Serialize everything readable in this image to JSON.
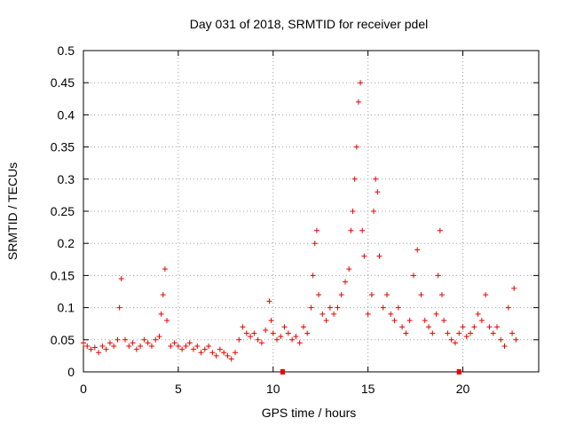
{
  "chart_data": {
    "type": "scatter",
    "title": "Day 031 of 2018, SRMTID for receiver pdel",
    "xlabel": "GPS time / hours",
    "ylabel": "SRMTID / TECUs",
    "xlim": [
      0,
      24
    ],
    "ylim": [
      0,
      0.5
    ],
    "x_ticks": [
      0,
      5,
      10,
      15,
      20
    ],
    "y_ticks": [
      0,
      0.05,
      0.1,
      0.15,
      0.2,
      0.25,
      0.3,
      0.35,
      0.4,
      0.45,
      0.5
    ],
    "x_tick_labels": [
      "0",
      "5",
      "10",
      "15",
      "20"
    ],
    "y_tick_labels": [
      "0",
      "0.05",
      "0.1",
      "0.15",
      "0.2",
      "0.25",
      "0.3",
      "0.35",
      "0.4",
      "0.45",
      "0.5"
    ],
    "grid": true,
    "marker": "plus",
    "color": "#ee0000",
    "gap_markers_x": [
      10.5,
      19.8
    ],
    "series": [
      {
        "name": "SRMTID",
        "x": [
          0.0,
          0.2,
          0.4,
          0.6,
          0.8,
          1.0,
          1.2,
          1.4,
          1.6,
          1.8,
          1.9,
          2.0,
          2.2,
          2.4,
          2.6,
          2.8,
          3.0,
          3.2,
          3.4,
          3.6,
          3.8,
          4.0,
          4.1,
          4.2,
          4.3,
          4.4,
          4.6,
          4.8,
          5.0,
          5.2,
          5.4,
          5.6,
          5.8,
          6.0,
          6.2,
          6.4,
          6.6,
          6.8,
          7.0,
          7.2,
          7.4,
          7.6,
          7.8,
          8.0,
          8.2,
          8.4,
          8.6,
          8.8,
          9.0,
          9.2,
          9.4,
          9.6,
          9.8,
          9.9,
          10.0,
          10.2,
          10.4,
          10.6,
          10.8,
          11.0,
          11.2,
          11.4,
          11.6,
          11.8,
          12.0,
          12.1,
          12.2,
          12.3,
          12.4,
          12.6,
          12.8,
          13.0,
          13.2,
          13.4,
          13.6,
          13.8,
          14.0,
          14.1,
          14.2,
          14.3,
          14.4,
          14.5,
          14.6,
          14.7,
          14.8,
          15.0,
          15.2,
          15.3,
          15.4,
          15.5,
          15.6,
          15.8,
          16.0,
          16.2,
          16.4,
          16.6,
          16.8,
          17.0,
          17.2,
          17.4,
          17.6,
          17.8,
          18.0,
          18.2,
          18.4,
          18.6,
          18.7,
          18.8,
          18.9,
          19.0,
          19.2,
          19.4,
          19.6,
          19.8,
          20.0,
          20.2,
          20.4,
          20.6,
          20.8,
          21.0,
          21.2,
          21.4,
          21.6,
          21.8,
          22.0,
          22.2,
          22.4,
          22.6,
          22.7,
          22.8
        ],
        "y": [
          0.045,
          0.04,
          0.035,
          0.038,
          0.03,
          0.04,
          0.035,
          0.045,
          0.04,
          0.05,
          0.1,
          0.145,
          0.05,
          0.04,
          0.045,
          0.035,
          0.04,
          0.05,
          0.045,
          0.04,
          0.05,
          0.055,
          0.09,
          0.12,
          0.16,
          0.08,
          0.04,
          0.045,
          0.04,
          0.035,
          0.04,
          0.045,
          0.035,
          0.04,
          0.03,
          0.035,
          0.04,
          0.03,
          0.025,
          0.035,
          0.03,
          0.025,
          0.02,
          0.03,
          0.05,
          0.07,
          0.06,
          0.055,
          0.06,
          0.05,
          0.045,
          0.065,
          0.11,
          0.08,
          0.06,
          0.05,
          0.055,
          0.07,
          0.06,
          0.05,
          0.055,
          0.045,
          0.07,
          0.06,
          0.1,
          0.15,
          0.2,
          0.22,
          0.12,
          0.09,
          0.08,
          0.1,
          0.09,
          0.1,
          0.12,
          0.14,
          0.16,
          0.22,
          0.25,
          0.3,
          0.35,
          0.42,
          0.45,
          0.22,
          0.18,
          0.09,
          0.12,
          0.25,
          0.3,
          0.28,
          0.18,
          0.1,
          0.12,
          0.09,
          0.08,
          0.1,
          0.07,
          0.06,
          0.08,
          0.15,
          0.19,
          0.12,
          0.08,
          0.07,
          0.06,
          0.09,
          0.15,
          0.22,
          0.12,
          0.08,
          0.06,
          0.05,
          0.045,
          0.06,
          0.07,
          0.055,
          0.06,
          0.07,
          0.09,
          0.08,
          0.12,
          0.07,
          0.06,
          0.07,
          0.05,
          0.04,
          0.1,
          0.06,
          0.13,
          0.05
        ]
      }
    ]
  }
}
